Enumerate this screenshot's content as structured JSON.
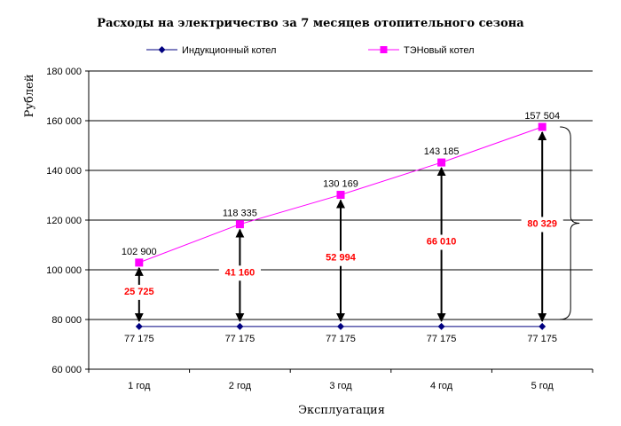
{
  "chart_data": {
    "type": "line",
    "title": "Расходы на электричество за 7 месяцев отопительного сезона",
    "xlabel": "Эксплуатация",
    "ylabel": "Рублей",
    "ylim": [
      60000,
      180000
    ],
    "yticks": [
      "60 000",
      "80 000",
      "100 000",
      "120 000",
      "140 000",
      "160 000",
      "180 000"
    ],
    "ytick_values": [
      60000,
      80000,
      100000,
      120000,
      140000,
      160000,
      180000
    ],
    "categories": [
      "1 год",
      "2 год",
      "3 год",
      "4 год",
      "5 год"
    ],
    "grid": true,
    "legend_position": "top",
    "series": [
      {
        "name": "Индукционный котел",
        "values": [
          77175,
          77175,
          77175,
          77175,
          77175
        ],
        "labels": [
          "77 175",
          "77 175",
          "77 175",
          "77 175",
          "77 175"
        ],
        "color": "#000080",
        "marker": "diamond"
      },
      {
        "name": "ТЭНовый котел",
        "values": [
          102900,
          118335,
          130169,
          143185,
          157504
        ],
        "labels": [
          "102 900",
          "118 335",
          "130 169",
          "143 185",
          "157 504"
        ],
        "color": "#FF00FF",
        "marker": "square"
      }
    ],
    "differences": {
      "values": [
        25725,
        41160,
        52994,
        66010,
        80329
      ],
      "labels": [
        "25 725",
        "41 160",
        "52 994",
        "66 010",
        "80 329"
      ],
      "color": "#FF0000"
    }
  }
}
